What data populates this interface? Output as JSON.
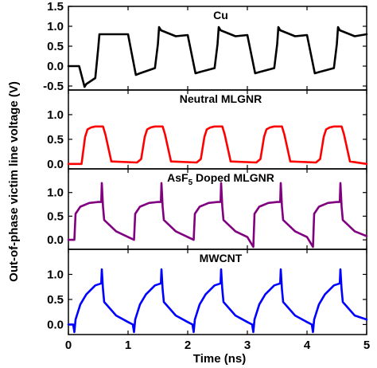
{
  "chart_data": {
    "type": "line",
    "xlabel": "Time (ns)",
    "ylabel": "Out-of-phase victim line voltage (V)",
    "xlim": [
      0,
      5
    ],
    "xticks": [
      "0",
      "1",
      "2",
      "3",
      "4",
      "5"
    ],
    "grid": false,
    "legend": "none",
    "panels": [
      {
        "id": "cu",
        "title": "Cu",
        "color": "#000000",
        "ylim": [
          -0.6,
          1.5
        ],
        "yticks": [
          "-0.5",
          "0.0",
          "0.5",
          "1.0",
          "1.5"
        ],
        "show_tick_labels": [
          "-0.5",
          "0.0",
          "0.5",
          "1.0",
          "1.5"
        ],
        "x": [
          0,
          0.18,
          0.27,
          0.3,
          0.45,
          0.5,
          0.52,
          0.55,
          0.8,
          1.0,
          1.13,
          1.2,
          1.45,
          1.5,
          1.52,
          1.55,
          1.8,
          2.0,
          2.13,
          2.2,
          2.45,
          2.5,
          2.52,
          2.55,
          2.8,
          3.0,
          3.13,
          3.2,
          3.45,
          3.5,
          3.52,
          3.55,
          3.8,
          4.0,
          4.13,
          4.2,
          4.45,
          4.5,
          4.52,
          4.55,
          4.8,
          5.0
        ],
        "y": [
          0.0,
          0.0,
          -0.52,
          -0.45,
          -0.3,
          0.45,
          0.8,
          0.8,
          0.8,
          0.8,
          -0.22,
          -0.18,
          -0.05,
          0.55,
          0.98,
          0.9,
          0.75,
          0.78,
          -0.18,
          -0.15,
          -0.05,
          0.55,
          0.98,
          0.9,
          0.75,
          0.78,
          -0.18,
          -0.15,
          -0.05,
          0.55,
          0.98,
          0.9,
          0.75,
          0.78,
          -0.18,
          -0.15,
          -0.05,
          0.55,
          0.98,
          0.9,
          0.75,
          0.8
        ]
      },
      {
        "id": "neutral",
        "title": "Neutral MLGNR",
        "color": "#ff0000",
        "ylim": [
          -0.1,
          1.5
        ],
        "yticks": [
          "0.0",
          "0.5",
          "1.0",
          "1.5"
        ],
        "show_tick_labels": [
          "0.0",
          "0.5",
          "1.0"
        ],
        "x": [
          0,
          0.22,
          0.28,
          0.32,
          0.38,
          0.45,
          0.58,
          0.62,
          0.72,
          1.15,
          1.22,
          1.28,
          1.32,
          1.38,
          1.45,
          1.58,
          1.62,
          1.72,
          2.15,
          2.22,
          2.28,
          2.32,
          2.38,
          2.45,
          2.58,
          2.62,
          2.72,
          3.15,
          3.22,
          3.28,
          3.32,
          3.38,
          3.45,
          3.58,
          3.62,
          3.72,
          4.15,
          4.22,
          4.28,
          4.32,
          4.38,
          4.45,
          4.58,
          4.62,
          4.72,
          5.0
        ],
        "y": [
          0.0,
          0.0,
          0.55,
          0.7,
          0.74,
          0.76,
          0.76,
          0.6,
          0.05,
          0.03,
          0.1,
          0.55,
          0.7,
          0.74,
          0.76,
          0.76,
          0.6,
          0.05,
          0.03,
          0.1,
          0.55,
          0.7,
          0.74,
          0.76,
          0.76,
          0.6,
          0.05,
          0.03,
          0.1,
          0.55,
          0.7,
          0.74,
          0.76,
          0.76,
          0.6,
          0.05,
          0.03,
          0.1,
          0.55,
          0.7,
          0.74,
          0.76,
          0.76,
          0.6,
          0.05,
          0.0
        ]
      },
      {
        "id": "asf5",
        "title": "AsF5 Doped MLGNR",
        "title_main": "AsF",
        "title_sub": "5",
        "title_rest": " Doped MLGNR",
        "color": "#800080",
        "ylim": [
          -0.2,
          1.5
        ],
        "yticks": [
          "0.0",
          "0.5",
          "1.0",
          "1.5"
        ],
        "show_tick_labels": [
          "0.0",
          "0.5",
          "1.0"
        ],
        "x": [
          0,
          0.1,
          0.12,
          0.2,
          0.35,
          0.5,
          0.55,
          0.56,
          0.58,
          0.6,
          0.8,
          1.0,
          1.1,
          1.12,
          1.2,
          1.35,
          1.5,
          1.55,
          1.56,
          1.58,
          1.6,
          1.8,
          2.0,
          2.1,
          2.12,
          2.2,
          2.35,
          2.5,
          2.55,
          2.56,
          2.58,
          2.6,
          2.8,
          3.0,
          3.1,
          3.12,
          3.2,
          3.35,
          3.5,
          3.55,
          3.56,
          3.58,
          3.6,
          3.8,
          4.0,
          4.1,
          4.12,
          4.2,
          4.35,
          4.5,
          4.55,
          4.56,
          4.58,
          4.6,
          4.8,
          5.0
        ],
        "y": [
          0.0,
          0.0,
          0.55,
          0.7,
          0.78,
          0.8,
          0.8,
          1.2,
          0.7,
          0.42,
          0.18,
          0.06,
          0.0,
          0.55,
          0.7,
          0.78,
          0.8,
          0.8,
          1.2,
          0.7,
          0.42,
          0.18,
          0.06,
          0.0,
          0.55,
          0.7,
          0.78,
          0.8,
          0.8,
          1.2,
          0.7,
          0.42,
          0.18,
          0.06,
          -0.15,
          0.55,
          0.7,
          0.78,
          0.8,
          0.8,
          1.2,
          0.7,
          0.42,
          0.18,
          0.06,
          -0.15,
          0.55,
          0.7,
          0.78,
          0.8,
          0.8,
          1.2,
          0.7,
          0.42,
          0.18,
          0.08
        ]
      },
      {
        "id": "mwcnt",
        "title": "MWCNT",
        "color": "#0000ff",
        "ylim": [
          -0.2,
          1.5
        ],
        "yticks": [
          "0.0",
          "0.5",
          "1.0",
          "1.5"
        ],
        "show_tick_labels": [
          "0.0",
          "0.5",
          "1.0"
        ],
        "x": [
          0,
          0.08,
          0.1,
          0.12,
          0.2,
          0.3,
          0.45,
          0.55,
          0.56,
          0.58,
          0.6,
          0.8,
          1.0,
          1.08,
          1.1,
          1.12,
          1.2,
          1.3,
          1.45,
          1.55,
          1.56,
          1.58,
          1.6,
          1.8,
          2.0,
          2.08,
          2.1,
          2.12,
          2.2,
          2.3,
          2.45,
          2.55,
          2.56,
          2.58,
          2.6,
          2.8,
          3.0,
          3.08,
          3.1,
          3.12,
          3.2,
          3.3,
          3.45,
          3.55,
          3.56,
          3.58,
          3.6,
          3.8,
          4.0,
          4.08,
          4.1,
          4.12,
          4.2,
          4.3,
          4.45,
          4.55,
          4.56,
          4.58,
          4.6,
          4.8,
          5.0
        ],
        "y": [
          0.0,
          0.0,
          -0.15,
          0.1,
          0.4,
          0.6,
          0.78,
          0.82,
          1.1,
          0.7,
          0.45,
          0.18,
          0.05,
          0.0,
          -0.15,
          0.1,
          0.4,
          0.6,
          0.78,
          0.82,
          1.1,
          0.7,
          0.45,
          0.18,
          0.05,
          0.0,
          -0.15,
          0.1,
          0.4,
          0.6,
          0.78,
          0.82,
          1.1,
          0.7,
          0.45,
          0.18,
          0.05,
          0.0,
          -0.15,
          0.1,
          0.4,
          0.6,
          0.78,
          0.82,
          1.1,
          0.7,
          0.45,
          0.18,
          0.05,
          0.0,
          -0.15,
          0.1,
          0.4,
          0.6,
          0.78,
          0.82,
          1.1,
          0.7,
          0.45,
          0.18,
          0.1
        ]
      }
    ]
  }
}
